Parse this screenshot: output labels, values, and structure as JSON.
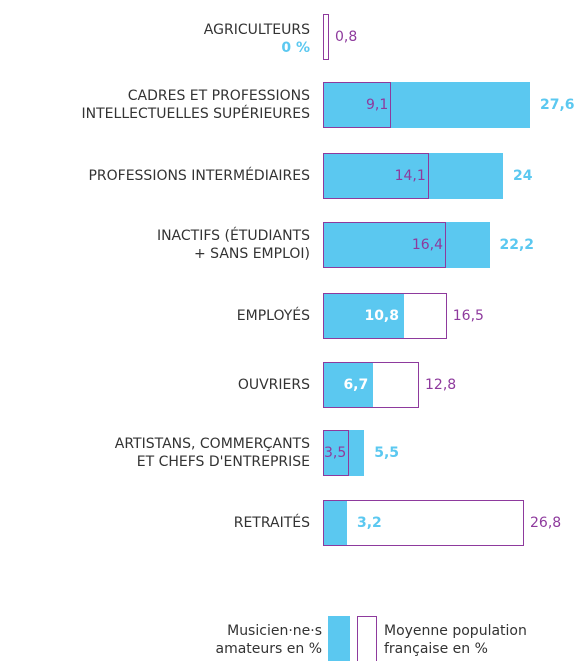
{
  "chart_data": {
    "type": "bar",
    "orientation": "horizontal",
    "categories": [
      "AGRICULTEURS",
      "CADRES ET PROFESSIONS\nINTELLECTUELLES SUPÉRIEURES",
      "PROFESSIONS INTERMÉDIAIRES",
      "INACTIFS (ÉTUDIANTS\n+ SANS EMPLOI)",
      "EMPLOYÉS",
      "OUVRIERS",
      "ARTISTANS, COMMERÇANTS\nET CHEFS D'ENTREPRISE",
      "RETRAITÉS"
    ],
    "series": [
      {
        "name": "Musicien·ne·s\namateurs en %",
        "color": "#5bc8f0",
        "values": [
          0,
          27.6,
          24,
          22.2,
          10.8,
          6.7,
          5.5,
          3.2
        ],
        "value_labels": [
          "0 %",
          "27,6",
          "24",
          "22,2",
          "10,8",
          "6,7",
          "5,5",
          "3,2"
        ]
      },
      {
        "name": "Moyenne population\nfrançaise en %",
        "color": "#8e3a9d",
        "values": [
          0.8,
          9.1,
          14.1,
          16.4,
          16.5,
          12.8,
          3.5,
          26.8
        ],
        "value_labels": [
          "0,8",
          "9,1",
          "14,1",
          "16,4",
          "16,5",
          "12,8",
          "3,5",
          "26,8"
        ]
      }
    ]
  }
}
